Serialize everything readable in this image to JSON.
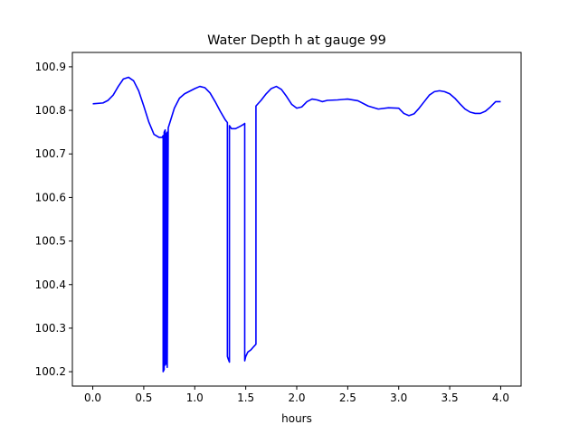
{
  "chart_data": {
    "type": "line",
    "title": "Water Depth h at gauge 99",
    "xlabel": "hours",
    "ylabel": "",
    "xlim": [
      -0.2,
      4.2
    ],
    "ylim": [
      100.167,
      100.933
    ],
    "x_ticks": [
      0.0,
      0.5,
      1.0,
      1.5,
      2.0,
      2.5,
      3.0,
      3.5,
      4.0
    ],
    "x_tick_labels": [
      "0.0",
      "0.5",
      "1.0",
      "1.5",
      "2.0",
      "2.5",
      "3.0",
      "3.5",
      "4.0"
    ],
    "y_ticks": [
      100.2,
      100.3,
      100.4,
      100.5,
      100.6,
      100.7,
      100.8,
      100.9
    ],
    "y_tick_labels": [
      "100.2",
      "100.3",
      "100.4",
      "100.5",
      "100.6",
      "100.7",
      "100.8",
      "100.9"
    ],
    "grid": false,
    "series": [
      {
        "color": "#0000ff",
        "x": [
          0.0,
          0.1,
          0.15,
          0.2,
          0.25,
          0.3,
          0.35,
          0.4,
          0.45,
          0.5,
          0.55,
          0.6,
          0.65,
          0.68,
          0.69,
          0.69,
          0.7,
          0.7,
          0.71,
          0.71,
          0.72,
          0.72,
          0.73,
          0.73,
          0.74,
          0.8,
          0.85,
          0.9,
          1.0,
          1.05,
          1.1,
          1.15,
          1.2,
          1.25,
          1.3,
          1.32,
          1.32,
          1.33,
          1.34,
          1.34,
          1.36,
          1.4,
          1.45,
          1.48,
          1.49,
          1.49,
          1.5,
          1.52,
          1.55,
          1.58,
          1.6,
          1.6,
          1.65,
          1.7,
          1.75,
          1.8,
          1.85,
          1.9,
          1.95,
          2.0,
          2.05,
          2.1,
          2.15,
          2.2,
          2.25,
          2.3,
          2.4,
          2.5,
          2.6,
          2.7,
          2.8,
          2.9,
          3.0,
          3.05,
          3.1,
          3.15,
          3.2,
          3.25,
          3.3,
          3.35,
          3.4,
          3.45,
          3.5,
          3.55,
          3.6,
          3.65,
          3.7,
          3.75,
          3.8,
          3.85,
          3.9,
          3.95,
          4.0
        ],
        "y": [
          100.815,
          100.817,
          100.823,
          100.835,
          100.855,
          100.872,
          100.876,
          100.868,
          100.845,
          100.81,
          100.773,
          100.745,
          100.738,
          100.738,
          100.742,
          100.2,
          100.205,
          100.75,
          100.755,
          100.215,
          100.22,
          100.745,
          100.75,
          100.21,
          100.76,
          100.805,
          100.828,
          100.838,
          100.85,
          100.855,
          100.852,
          100.84,
          100.82,
          100.798,
          100.778,
          100.772,
          100.235,
          100.228,
          100.222,
          100.765,
          100.758,
          100.758,
          100.764,
          100.768,
          100.77,
          100.225,
          100.235,
          100.245,
          100.25,
          100.258,
          100.263,
          100.81,
          100.823,
          100.838,
          100.85,
          100.855,
          100.848,
          100.832,
          100.814,
          100.805,
          100.808,
          100.82,
          100.826,
          100.824,
          100.82,
          100.823,
          100.824,
          100.826,
          100.822,
          100.81,
          100.803,
          100.806,
          100.805,
          100.793,
          100.788,
          100.792,
          100.805,
          100.82,
          100.835,
          100.843,
          100.845,
          100.843,
          100.838,
          100.828,
          100.815,
          100.803,
          100.796,
          100.793,
          100.793,
          100.798,
          100.808,
          100.82,
          100.82
        ]
      }
    ]
  }
}
